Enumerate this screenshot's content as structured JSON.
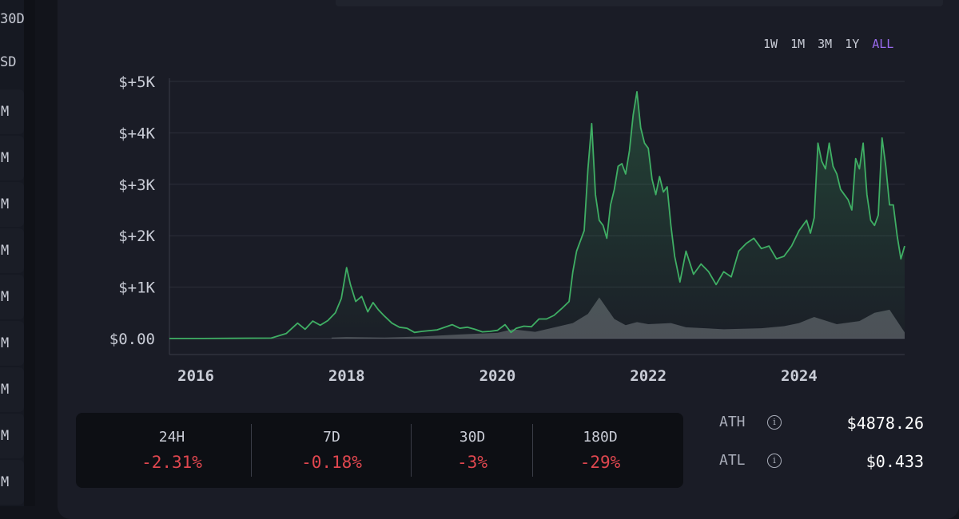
{
  "sidebar": {
    "labels": [
      "30D",
      "SD"
    ],
    "cells": [
      "M",
      "M",
      "M",
      "M",
      "M",
      "M",
      "M",
      "M",
      "M"
    ]
  },
  "range_buttons": [
    {
      "label": "1W",
      "active": false
    },
    {
      "label": "1M",
      "active": false
    },
    {
      "label": "3M",
      "active": false
    },
    {
      "label": "1Y",
      "active": false
    },
    {
      "label": "ALL",
      "active": true
    }
  ],
  "colors": {
    "line": "#3fae64",
    "volume": "#8a8d94",
    "negative": "#e0474f",
    "active_range": "#9b6cf0"
  },
  "chart_data": {
    "type": "area",
    "y_tick_labels": [
      "$0.00",
      "$+1K",
      "$+2K",
      "$+3K",
      "$+4K",
      "$+5K"
    ],
    "y_ticks": [
      0,
      1000,
      2000,
      3000,
      4000,
      5000
    ],
    "x_tick_labels": [
      "2016",
      "2018",
      "2020",
      "2022",
      "2024"
    ],
    "x_ticks": [
      2016,
      2018,
      2020,
      2022,
      2024
    ],
    "xlim": [
      2015.65,
      2025.4
    ],
    "ylim": [
      0,
      5000
    ],
    "grid": true,
    "series": [
      {
        "type": "line",
        "x": [
          2015.65,
          2016.0,
          2016.5,
          2017.0,
          2017.2,
          2017.35,
          2017.45,
          2017.55,
          2017.65,
          2017.75,
          2017.85,
          2017.93,
          2018.0,
          2018.05,
          2018.12,
          2018.2,
          2018.28,
          2018.35,
          2018.42,
          2018.5,
          2018.6,
          2018.7,
          2018.8,
          2018.9,
          2019.0,
          2019.2,
          2019.4,
          2019.5,
          2019.6,
          2019.7,
          2019.8,
          2019.9,
          2020.0,
          2020.1,
          2020.18,
          2020.25,
          2020.35,
          2020.45,
          2020.55,
          2020.65,
          2020.75,
          2020.85,
          2020.95,
          2021.0,
          2021.05,
          2021.1,
          2021.15,
          2021.2,
          2021.25,
          2021.3,
          2021.35,
          2021.4,
          2021.45,
          2021.5,
          2021.55,
          2021.6,
          2021.65,
          2021.7,
          2021.75,
          2021.8,
          2021.85,
          2021.9,
          2021.95,
          2022.0,
          2022.05,
          2022.1,
          2022.15,
          2022.2,
          2022.25,
          2022.3,
          2022.35,
          2022.42,
          2022.5,
          2022.6,
          2022.7,
          2022.8,
          2022.9,
          2023.0,
          2023.1,
          2023.2,
          2023.3,
          2023.4,
          2023.5,
          2023.6,
          2023.7,
          2023.8,
          2023.9,
          2024.0,
          2024.1,
          2024.15,
          2024.2,
          2024.25,
          2024.3,
          2024.35,
          2024.4,
          2024.45,
          2024.5,
          2024.55,
          2024.6,
          2024.65,
          2024.7,
          2024.75,
          2024.8,
          2024.85,
          2024.9,
          2024.95,
          2025.0,
          2025.05,
          2025.1,
          2025.15,
          2025.2,
          2025.25,
          2025.3,
          2025.35,
          2025.4
        ],
        "y": [
          1,
          1,
          5,
          10,
          100,
          300,
          180,
          340,
          260,
          350,
          500,
          780,
          1380,
          1050,
          720,
          820,
          520,
          700,
          560,
          440,
          300,
          220,
          200,
          120,
          140,
          170,
          270,
          200,
          220,
          180,
          130,
          140,
          160,
          270,
          120,
          200,
          240,
          230,
          380,
          380,
          450,
          580,
          720,
          1300,
          1700,
          1900,
          2100,
          3300,
          4180,
          2800,
          2300,
          2200,
          1950,
          2600,
          2900,
          3350,
          3400,
          3200,
          3650,
          4350,
          4800,
          4100,
          3800,
          3700,
          3100,
          2800,
          3150,
          2850,
          2950,
          2200,
          1600,
          1100,
          1700,
          1250,
          1450,
          1300,
          1050,
          1300,
          1200,
          1700,
          1850,
          1950,
          1750,
          1800,
          1550,
          1600,
          1800,
          2100,
          2300,
          2050,
          2350,
          3800,
          3450,
          3300,
          3800,
          3350,
          3200,
          2900,
          2800,
          2700,
          2500,
          3500,
          3300,
          3800,
          2800,
          2300,
          2200,
          2400,
          3900,
          3350,
          2600,
          2600,
          2000,
          1550,
          1800
        ]
      },
      {
        "type": "volume",
        "x": [
          2017.8,
          2018.0,
          2018.2,
          2018.5,
          2019.0,
          2019.5,
          2020.0,
          2020.2,
          2020.5,
          2021.0,
          2021.2,
          2021.35,
          2021.55,
          2021.7,
          2021.85,
          2022.0,
          2022.3,
          2022.5,
          2023.0,
          2023.5,
          2023.8,
          2024.0,
          2024.2,
          2024.5,
          2024.8,
          2025.0,
          2025.2,
          2025.4
        ],
        "y": [
          20,
          30,
          25,
          20,
          40,
          80,
          110,
          180,
          130,
          300,
          480,
          800,
          380,
          260,
          320,
          280,
          300,
          220,
          180,
          200,
          240,
          300,
          420,
          280,
          340,
          500,
          560,
          120
        ]
      }
    ]
  },
  "stats": [
    {
      "label": "24H",
      "value": "-2.31%"
    },
    {
      "label": "7D",
      "value": "-0.18%"
    },
    {
      "label": "30D",
      "value": "-3%"
    },
    {
      "label": "180D",
      "value": "-29%"
    }
  ],
  "extremes": {
    "ath_label": "ATH",
    "ath_value": "$4878.26",
    "atl_label": "ATL",
    "atl_value": "$0.433",
    "info_glyph": "i"
  }
}
